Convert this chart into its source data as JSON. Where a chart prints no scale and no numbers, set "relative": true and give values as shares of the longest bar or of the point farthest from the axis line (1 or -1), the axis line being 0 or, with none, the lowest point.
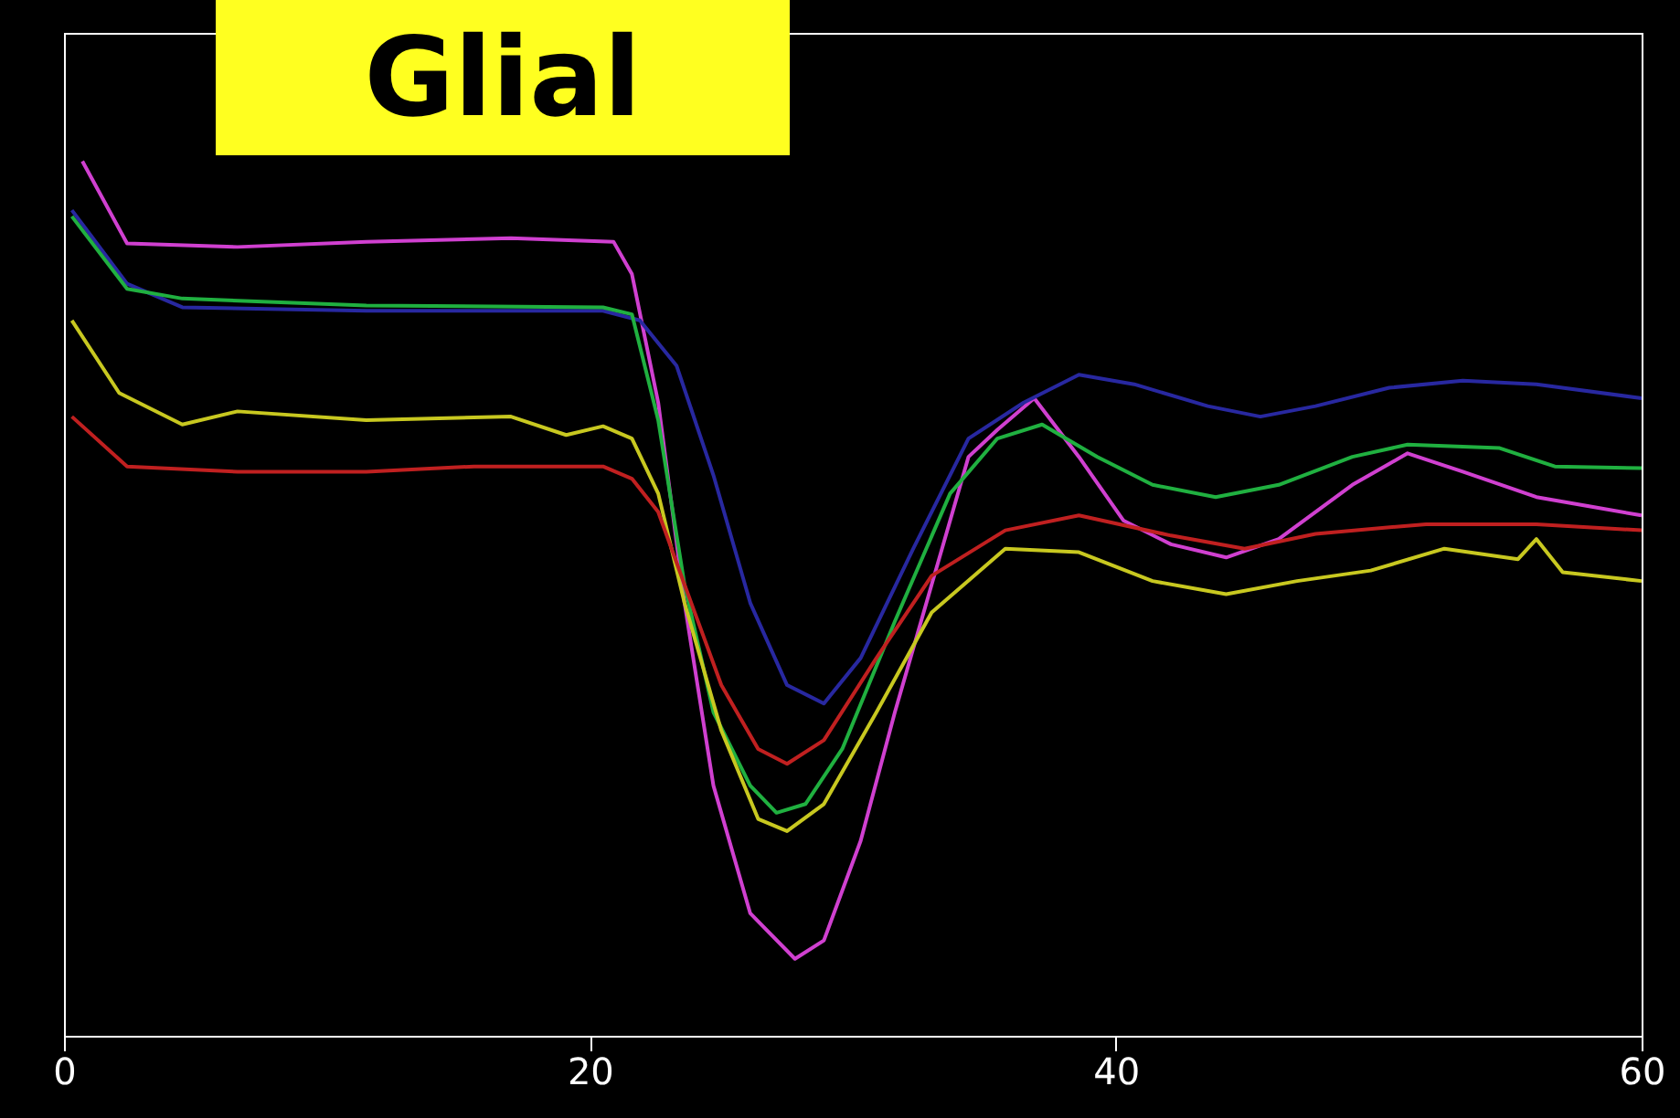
{
  "chart_data": {
    "type": "line",
    "title": "Glial",
    "relative": true,
    "xlim": [
      0,
      60
    ],
    "xticks": [
      0,
      20,
      40,
      60
    ],
    "series": [
      {
        "color": "#d040d0",
        "x": [
          0.7,
          2.4,
          6.6,
          11.5,
          17,
          20.9,
          21.6,
          22.6,
          23.6,
          24.7,
          26.1,
          27.8,
          28.9,
          30.3,
          31.6,
          33,
          34.4,
          35.5,
          36.9,
          38.6,
          40.3,
          42.1,
          44.2,
          46.2,
          49,
          51.1,
          53.2,
          56,
          58.1,
          60
        ],
        "values": [
          1.0,
          0.906,
          0.902,
          0.908,
          0.912,
          0.908,
          0.871,
          0.724,
          0.495,
          0.286,
          0.14,
          0.088,
          0.109,
          0.223,
          0.37,
          0.516,
          0.662,
          0.693,
          0.729,
          0.662,
          0.589,
          0.562,
          0.547,
          0.568,
          0.63,
          0.666,
          0.645,
          0.616,
          0.605,
          0.595
        ]
      },
      {
        "color": "#2828a0",
        "x": [
          0.3,
          2.4,
          4.5,
          11.5,
          20.5,
          21.9,
          23.3,
          24.7,
          26.1,
          27.5,
          28.9,
          30.3,
          32.3,
          34.4,
          36.5,
          38.6,
          40.7,
          43.5,
          45.5,
          47.6,
          50.4,
          53.2,
          56,
          60
        ],
        "values": [
          0.944,
          0.86,
          0.833,
          0.829,
          0.829,
          0.818,
          0.766,
          0.641,
          0.495,
          0.401,
          0.38,
          0.432,
          0.557,
          0.683,
          0.724,
          0.756,
          0.745,
          0.72,
          0.708,
          0.72,
          0.741,
          0.749,
          0.745,
          0.729
        ]
      },
      {
        "color": "#20b040",
        "x": [
          0.3,
          2.4,
          4.5,
          11.5,
          20.5,
          21.6,
          22.6,
          23.6,
          24.7,
          26.1,
          27.1,
          28.2,
          29.6,
          31.6,
          33.7,
          35.5,
          37.2,
          39.3,
          41.4,
          43.8,
          46.2,
          49,
          51.1,
          54.6,
          56.7,
          60
        ],
        "values": [
          0.937,
          0.854,
          0.843,
          0.835,
          0.833,
          0.825,
          0.704,
          0.516,
          0.37,
          0.286,
          0.255,
          0.265,
          0.328,
          0.474,
          0.62,
          0.683,
          0.699,
          0.662,
          0.63,
          0.616,
          0.63,
          0.662,
          0.676,
          0.672,
          0.651,
          0.649
        ]
      },
      {
        "color": "#c8c820",
        "x": [
          0.3,
          2.1,
          4.5,
          6.6,
          11.5,
          17,
          19.1,
          20.5,
          21.6,
          22.6,
          23.6,
          25,
          26.4,
          27.5,
          28.9,
          30.9,
          33,
          35.8,
          38.6,
          41.4,
          44.2,
          46.9,
          49.7,
          52.5,
          55.3,
          56,
          57,
          60
        ],
        "values": [
          0.818,
          0.735,
          0.699,
          0.714,
          0.704,
          0.708,
          0.687,
          0.697,
          0.683,
          0.62,
          0.495,
          0.349,
          0.248,
          0.234,
          0.265,
          0.37,
          0.484,
          0.557,
          0.553,
          0.52,
          0.505,
          0.52,
          0.532,
          0.557,
          0.545,
          0.568,
          0.53,
          0.52
        ]
      },
      {
        "color": "#c02020",
        "x": [
          0.3,
          2.4,
          6.6,
          11.5,
          15.6,
          20.5,
          21.6,
          22.6,
          23.6,
          25,
          26.4,
          27.5,
          28.9,
          30.9,
          33,
          35.8,
          38.6,
          42.1,
          44.9,
          47.6,
          51.8,
          56,
          60
        ],
        "values": [
          0.708,
          0.651,
          0.645,
          0.645,
          0.651,
          0.651,
          0.637,
          0.599,
          0.516,
          0.401,
          0.328,
          0.311,
          0.338,
          0.432,
          0.526,
          0.578,
          0.595,
          0.572,
          0.557,
          0.574,
          0.585,
          0.585,
          0.578
        ]
      }
    ]
  }
}
